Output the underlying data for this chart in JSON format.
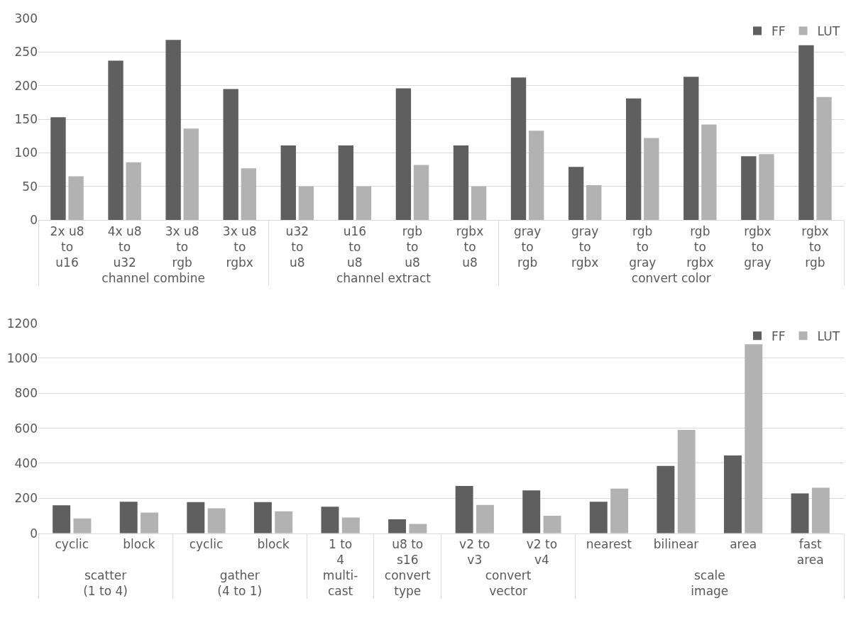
{
  "chart_data": [
    {
      "type": "bar",
      "categories": [
        [
          "channel combine",
          "2x u8\nto\nu16"
        ],
        [
          null,
          "4x u8\nto\nu32"
        ],
        [
          null,
          "3x u8\nto\nrgb"
        ],
        [
          null,
          "3x u8\nto\nrgbx"
        ],
        [
          "channel extract",
          "u32\nto\nu8"
        ],
        [
          null,
          "u16\nto\nu8"
        ],
        [
          null,
          "rgb\nto\nu8"
        ],
        [
          null,
          "rgbx\nto\nu8"
        ],
        [
          "convert color",
          "gray\nto\nrgb"
        ],
        [
          null,
          "gray\nto\nrgbx"
        ],
        [
          null,
          "rgb\nto\ngray"
        ],
        [
          null,
          "rgb\nto\nrgbx"
        ],
        [
          null,
          "rgbx\nto\ngray"
        ],
        [
          null,
          "rgbx\nto\nrgb"
        ]
      ],
      "series": [
        {
          "name": "FF",
          "color": "#5f5f5f",
          "values": [
            153,
            237,
            268,
            195,
            111,
            111,
            196,
            111,
            212,
            79,
            181,
            213,
            95,
            260
          ]
        },
        {
          "name": "LUT",
          "color": "#b2b2b2",
          "values": [
            65,
            86,
            136,
            77,
            50,
            50,
            82,
            50,
            133,
            52,
            122,
            142,
            98,
            183
          ]
        }
      ],
      "ylim": [
        0,
        300
      ],
      "yticks": [
        0,
        50,
        100,
        150,
        200,
        250,
        300
      ],
      "grid": "y",
      "legend": "top right"
    },
    {
      "type": "bar",
      "categories": [
        [
          "scatter\n(1 to 4)",
          "cyclic"
        ],
        [
          null,
          "block"
        ],
        [
          "gather\n(4 to 1)",
          "cyclic"
        ],
        [
          null,
          "block"
        ],
        [
          "multi-\ncast",
          "1 to\n4"
        ],
        [
          "convert\ntype",
          "u8 to\ns16"
        ],
        [
          "convert\nvector",
          "v2 to\nv3"
        ],
        [
          null,
          "v2 to\nv4"
        ],
        [
          "scale\nimage",
          "nearest"
        ],
        [
          null,
          "bilinear"
        ],
        [
          null,
          "area"
        ],
        [
          null,
          "fast\narea"
        ]
      ],
      "series": [
        {
          "name": "FF",
          "color": "#5f5f5f",
          "values": [
            160,
            180,
            178,
            178,
            152,
            80,
            270,
            245,
            180,
            385,
            445,
            228
          ]
        },
        {
          "name": "LUT",
          "color": "#b2b2b2",
          "values": [
            85,
            118,
            143,
            125,
            90,
            53,
            162,
            100,
            255,
            590,
            1080,
            260
          ]
        }
      ],
      "ylim": [
        0,
        1200
      ],
      "yticks": [
        0,
        200,
        400,
        600,
        800,
        1000,
        1200
      ],
      "grid": "y",
      "legend": "top right"
    }
  ]
}
